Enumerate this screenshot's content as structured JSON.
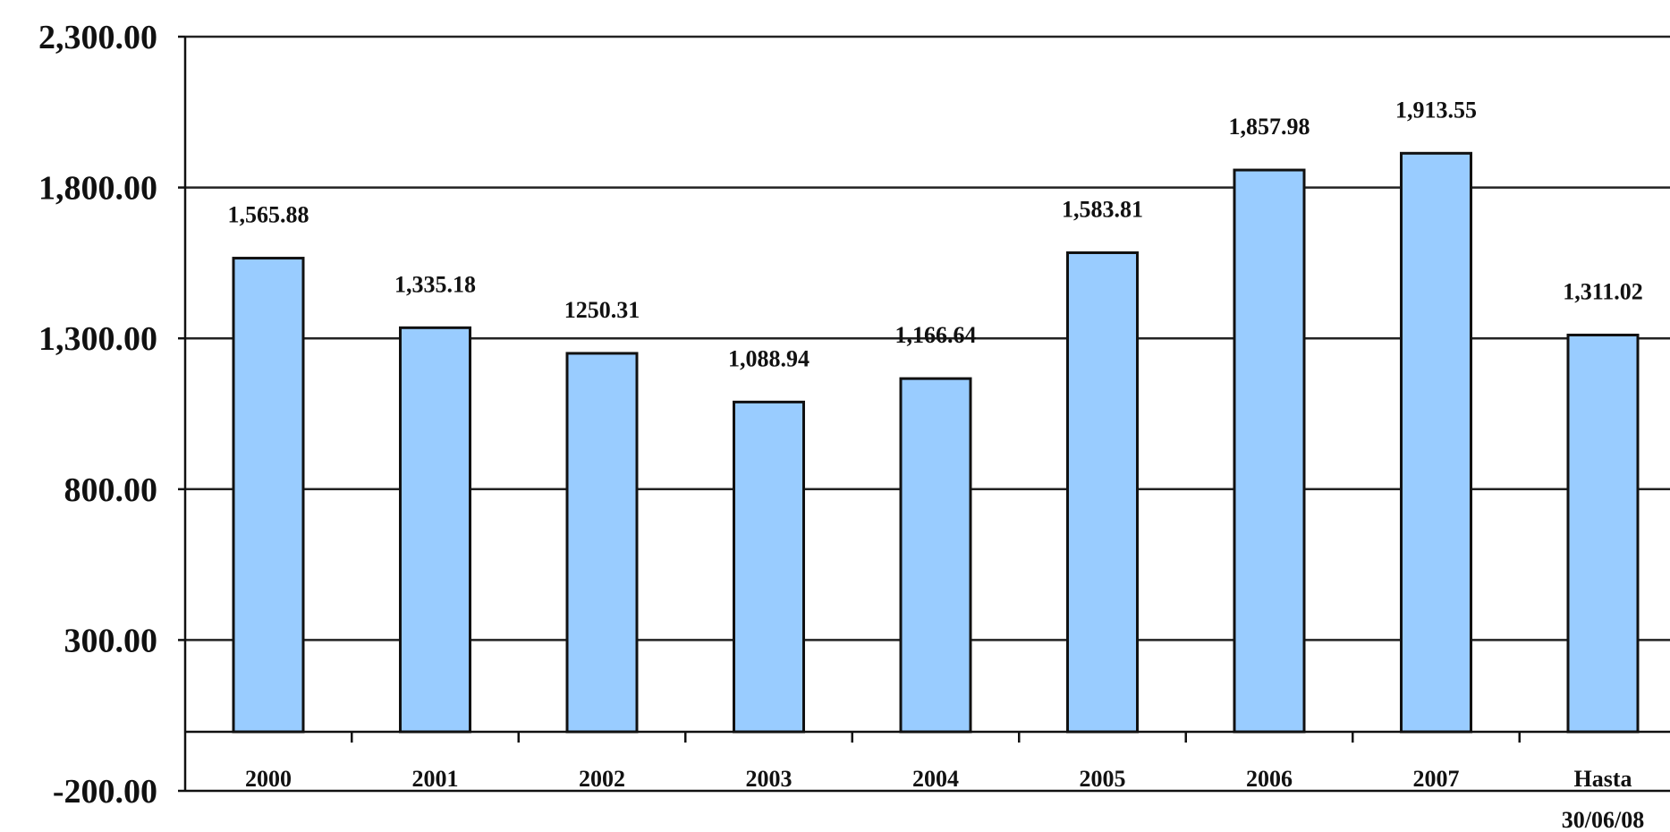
{
  "chart_data": {
    "type": "bar",
    "title": "",
    "xlabel": "",
    "ylabel": "",
    "categories": [
      "2000",
      "2001",
      "2002",
      "2003",
      "2004",
      "2005",
      "2006",
      "2007",
      "Hasta"
    ],
    "category_sublabels": [
      "",
      "",
      "",
      "",
      "",
      "",
      "",
      "",
      "30/06/08"
    ],
    "values": [
      1565.88,
      1335.18,
      1250.31,
      1088.94,
      1166.64,
      1583.81,
      1857.98,
      1913.55,
      1311.02
    ],
    "data_labels": [
      "1,565.88",
      "1,335.18",
      "1250.31",
      "1,088.94",
      "1,166.64",
      "1,583.81",
      "1,857.98",
      "1,913.55",
      "1,311.02"
    ],
    "ylim": [
      -200,
      2300
    ],
    "yticks": [
      -200,
      300,
      800,
      1300,
      1800,
      2300
    ],
    "ytick_labels": [
      "-200.00",
      "300.00",
      "800.00",
      "1,300.00",
      "1,800.00",
      "2,300.00"
    ],
    "grid": true,
    "legend": "none",
    "colors": {
      "bar_fill": "#99ccff",
      "bar_stroke": "#111111",
      "grid": "#222222",
      "axis": "#111111"
    }
  }
}
